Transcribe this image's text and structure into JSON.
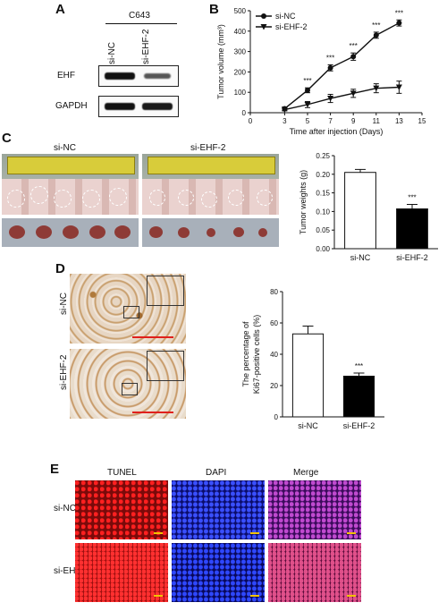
{
  "panels": {
    "A": {
      "letter": "A",
      "cell_line": "C643",
      "lanes": [
        "si-NC",
        "si-EHF-2"
      ],
      "rows": [
        "EHF",
        "GAPDH"
      ],
      "band_intensity": {
        "EHF": [
          1.0,
          0.45
        ],
        "GAPDH": [
          1.0,
          0.95
        ]
      }
    },
    "B": {
      "letter": "B",
      "significance": "***"
    },
    "C": {
      "letter": "C",
      "photo_labels": [
        "si-NC",
        "si-EHF-2"
      ]
    },
    "D": {
      "letter": "D",
      "row_labels": [
        "si-NC",
        "si-EHF-2"
      ]
    },
    "E": {
      "letter": "E",
      "columns": [
        "TUNEL",
        "DAPI",
        "Merge"
      ],
      "rows": [
        "si-NC",
        "si-EHF"
      ]
    }
  },
  "chart_data": [
    {
      "id": "tumor-volume",
      "type": "line",
      "xlabel": "Time after injection (Days)",
      "ylabel": "Tumor volume (mm³)",
      "xlim": [
        0,
        15
      ],
      "ylim": [
        0,
        500
      ],
      "xticks": [
        0,
        3,
        5,
        7,
        9,
        11,
        13,
        15
      ],
      "yticks": [
        0,
        100,
        200,
        300,
        400,
        500
      ],
      "legend_position": "top-left",
      "x": [
        3,
        5,
        7,
        9,
        11,
        13
      ],
      "series": [
        {
          "name": "si-NC",
          "marker": "circle",
          "values": [
            20,
            110,
            220,
            275,
            380,
            440
          ],
          "errors": [
            8,
            12,
            15,
            18,
            15,
            15
          ]
        },
        {
          "name": "si-EHF-2",
          "marker": "triangle-down",
          "values": [
            15,
            40,
            70,
            95,
            120,
            125
          ],
          "errors": [
            6,
            15,
            20,
            20,
            22,
            30
          ]
        }
      ],
      "annotations": [
        {
          "x": 5,
          "text": "***"
        },
        {
          "x": 7,
          "text": "***"
        },
        {
          "x": 9,
          "text": "***"
        },
        {
          "x": 11,
          "text": "***"
        },
        {
          "x": 13,
          "text": "***"
        }
      ]
    },
    {
      "id": "tumor-weights",
      "type": "bar",
      "categories": [
        "si-NC",
        "si-EHF-2"
      ],
      "values": [
        0.205,
        0.107
      ],
      "errors": [
        0.008,
        0.012
      ],
      "ylabel": "Tumor weights (g)",
      "ylim": [
        0,
        0.25
      ],
      "yticks": [
        "0.00",
        "0.05",
        "0.10",
        "0.15",
        "0.20",
        "0.25"
      ],
      "fills": [
        "#ffffff",
        "#000000"
      ],
      "annotations": [
        {
          "category": "si-EHF-2",
          "text": "***"
        }
      ]
    },
    {
      "id": "ki67",
      "type": "bar",
      "categories": [
        "si-NC",
        "si-EHF-2"
      ],
      "values": [
        53,
        26
      ],
      "errors": [
        5,
        2
      ],
      "ylabel": "The percentage of Ki67-positive cells (%)",
      "ylim": [
        0,
        80
      ],
      "yticks": [
        "0",
        "20",
        "40",
        "60",
        "80"
      ],
      "fills": [
        "#ffffff",
        "#000000"
      ],
      "annotations": [
        {
          "category": "si-EHF-2",
          "text": "***"
        }
      ]
    }
  ]
}
